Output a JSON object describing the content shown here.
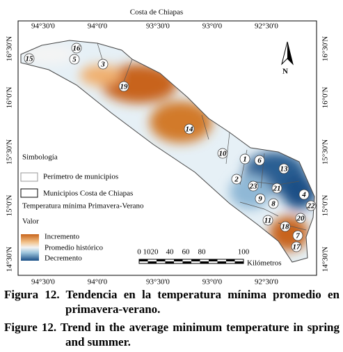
{
  "map": {
    "title": "Costa de Chiapas",
    "longitudes": [
      "94°30'0",
      "94°0'0",
      "93°30'0",
      "93°0'0",
      "92°30'0"
    ],
    "latitudes": [
      "16°30'N",
      "16°0'N",
      "15°30'N",
      "15°0'N",
      "14°30'N"
    ],
    "north": "N",
    "municipalities": [
      {
        "label": "15"
      },
      {
        "label": "16"
      },
      {
        "label": "5"
      },
      {
        "label": "3"
      },
      {
        "label": "19"
      },
      {
        "label": "14"
      },
      {
        "label": "10"
      },
      {
        "label": "1"
      },
      {
        "label": "6"
      },
      {
        "label": "13"
      },
      {
        "label": "2"
      },
      {
        "label": "23"
      },
      {
        "label": "21"
      },
      {
        "label": "9"
      },
      {
        "label": "8"
      },
      {
        "label": "4"
      },
      {
        "label": "22"
      },
      {
        "label": "11"
      },
      {
        "label": "20"
      },
      {
        "label": "18"
      },
      {
        "label": "7"
      },
      {
        "label": "17"
      }
    ]
  },
  "legend": {
    "title": "Simbología",
    "items": [
      "Perímetro de municipios",
      "Municipios Costa de Chiapas"
    ],
    "subtitle": "Temperatura mínima Primavera-Verano",
    "value_title": "Valor",
    "ramp": [
      "Incremento",
      "Promedio histórico",
      "Decremento"
    ]
  },
  "scale": {
    "ticks": [
      "0",
      "10",
      "20",
      "40",
      "60",
      "80",
      "100"
    ],
    "unit": "Kilómetros"
  },
  "captions": [
    "Figura 12. Tendencia en la temperatura mínima promedio en primavera-verano.",
    "Figure 12. Trend in the average minimum temperature in spring and summer."
  ]
}
